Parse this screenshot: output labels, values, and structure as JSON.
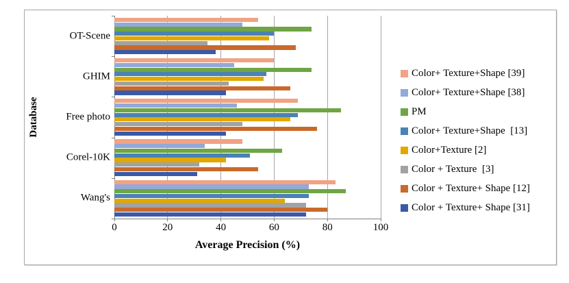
{
  "figure": {
    "border_color": "#a6a6a6",
    "background": "#ffffff",
    "gridline_color": "#a6a6a6",
    "axis_color": "#7f7f7f"
  },
  "chart_data": {
    "type": "bar",
    "orientation": "horizontal",
    "title": "",
    "xlabel": "Average Precision (%)",
    "ylabel": "Database",
    "xlim": [
      0,
      100
    ],
    "xticks": [
      0,
      20,
      40,
      60,
      80,
      100
    ],
    "grid": "vertical-on",
    "legend_position": "right",
    "categories": [
      "OT-Scene",
      "GHIM",
      "Free photo",
      "Corel-10K",
      "Wang's"
    ],
    "series": [
      {
        "name": "Color+ Texture+Shape [39]",
        "color": "#f1a383",
        "values": [
          54,
          60,
          69,
          48,
          83
        ]
      },
      {
        "name": "Color+ Texture+Shape [38]",
        "color": "#92a9d9",
        "values": [
          48,
          45,
          46,
          34,
          73
        ]
      },
      {
        "name": "PM",
        "color": "#6fa544",
        "values": [
          74,
          74,
          85,
          63,
          87
        ]
      },
      {
        "name": "Color+ Texture+Shape  [13]",
        "color": "#4a82b4",
        "values": [
          60,
          57,
          69,
          51,
          73
        ]
      },
      {
        "name": "Color+Texture [2]",
        "color": "#e1a800",
        "values": [
          58,
          56,
          66,
          42,
          64
        ]
      },
      {
        "name": "Color + Texture  [3]",
        "color": "#a2a2a2",
        "values": [
          35,
          43,
          48,
          32,
          72
        ]
      },
      {
        "name": "Color + Texture+ Shape [12]",
        "color": "#c96a2b",
        "values": [
          68,
          66,
          76,
          54,
          80
        ]
      },
      {
        "name": "Color + Texture+ Shape [31]",
        "color": "#3a5aa8",
        "values": [
          38,
          42,
          42,
          31,
          72
        ]
      }
    ]
  }
}
